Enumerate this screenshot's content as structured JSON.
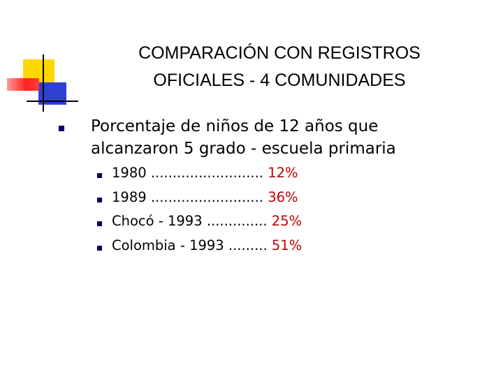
{
  "title": [
    "COMPARACIÓN CON REGISTROS",
    "OFICIALES - 4 COMUNIDADES"
  ],
  "bullet": {
    "lines": [
      "Porcentaje de niños de 12 años que",
      "alcanzaron 5 grado - escuela primaria"
    ],
    "items": [
      {
        "label": "1980 ..........................",
        "value": "12%"
      },
      {
        "label": "1989 ..........................",
        "value": "36%"
      },
      {
        "label": "Chocó - 1993 ..............",
        "value": "25%"
      },
      {
        "label": "Colombia - 1993 .........",
        "value": "51%"
      }
    ]
  }
}
